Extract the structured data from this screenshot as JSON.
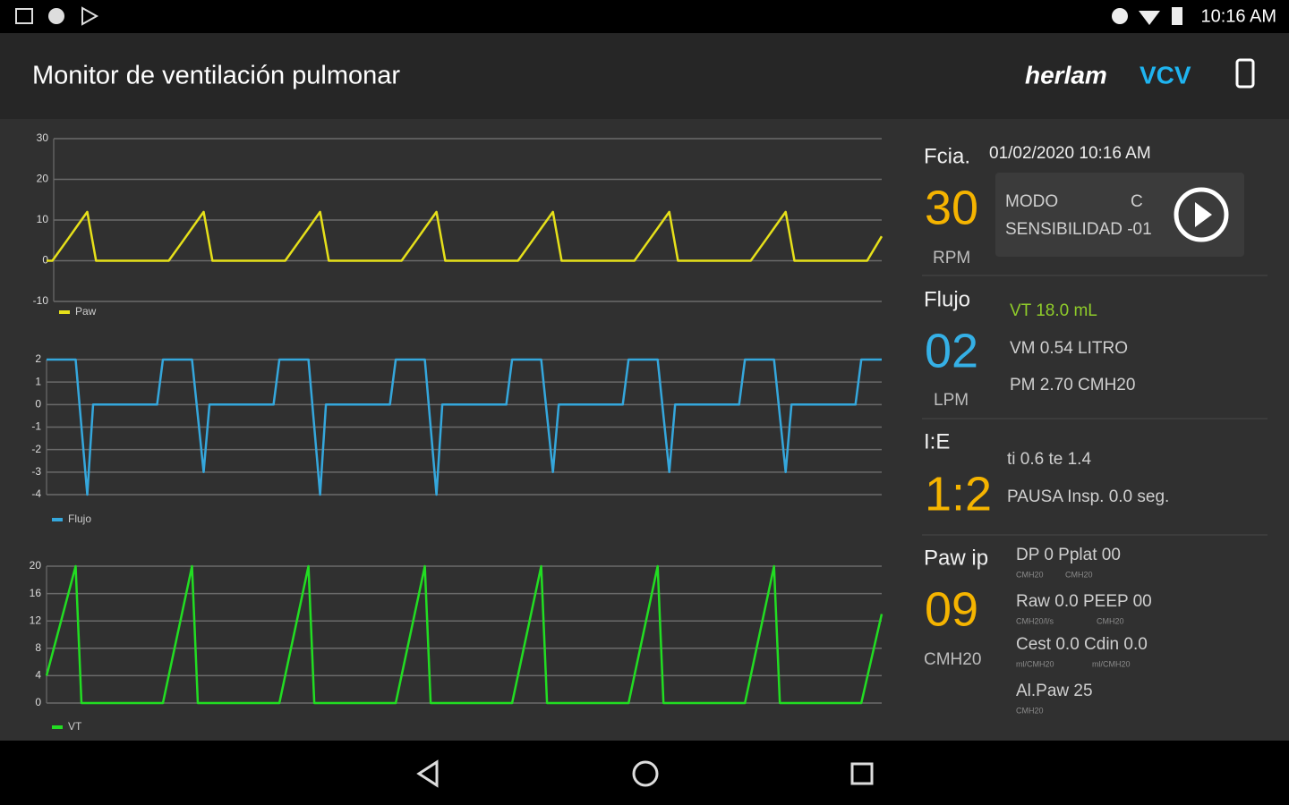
{
  "status_bar": {
    "time": "10:16 AM"
  },
  "app_bar": {
    "title": "Monitor de ventilación pulmonar",
    "brand": "herlam",
    "mode": "VCV"
  },
  "chart_data": [
    {
      "type": "line",
      "grid": true,
      "xlim": [
        0,
        14.35
      ],
      "ylim": [
        -10,
        30
      ],
      "yticks": [
        30,
        20,
        10,
        0,
        -10
      ],
      "x": [
        0,
        0.1,
        0.35,
        0.5,
        0.7,
        0.85,
        2.1,
        2.35,
        2.5,
        2.7,
        2.85,
        4.1,
        4.35,
        4.5,
        4.7,
        4.85,
        6.1,
        6.35,
        6.5,
        6.7,
        6.85,
        8.1,
        8.35,
        8.5,
        8.7,
        8.85,
        10.1,
        10.35,
        10.5,
        10.7,
        10.85,
        12.1,
        12.35,
        12.5,
        12.7,
        12.85,
        14.1,
        14.35
      ],
      "series": [
        {
          "name": "Paw",
          "color": "#e6e01a",
          "values": [
            0,
            0,
            5,
            8,
            12,
            0,
            0,
            5,
            8,
            12,
            0,
            0,
            5,
            8,
            12,
            0,
            0,
            5,
            8,
            12,
            0,
            0,
            5,
            8,
            12,
            0,
            0,
            5,
            8,
            12,
            0,
            0,
            5,
            8,
            12,
            0,
            0,
            6
          ]
        }
      ]
    },
    {
      "type": "line",
      "grid": true,
      "xlim": [
        0,
        14.35
      ],
      "ylim": [
        -4,
        2
      ],
      "yticks": [
        2,
        1,
        0,
        -1,
        -2,
        -3,
        -4
      ],
      "x": [
        0,
        0.5,
        0.7,
        0.8,
        1.9,
        2.0,
        2.5,
        2.7,
        2.8,
        3.9,
        4.0,
        4.5,
        4.7,
        4.8,
        5.9,
        6.0,
        6.5,
        6.7,
        6.8,
        7.9,
        8.0,
        8.5,
        8.7,
        8.8,
        9.9,
        10.0,
        10.5,
        10.7,
        10.8,
        11.9,
        12.0,
        12.5,
        12.7,
        12.8,
        13.9,
        14.0,
        14.35
      ],
      "series": [
        {
          "name": "Flujo",
          "color": "#35a7dc",
          "values": [
            2,
            2,
            -4,
            0,
            0,
            2,
            2,
            -3,
            0,
            0,
            2,
            2,
            -4,
            0,
            0,
            2,
            2,
            -4,
            0,
            0,
            2,
            2,
            -3,
            0,
            0,
            2,
            2,
            -3,
            0,
            0,
            2,
            2,
            -3,
            0,
            0,
            2,
            2
          ]
        }
      ]
    },
    {
      "type": "line",
      "grid": true,
      "xlim": [
        0,
        14.35
      ],
      "ylim": [
        0,
        20
      ],
      "yticks": [
        20,
        16,
        12,
        8,
        4,
        0
      ],
      "x": [
        0,
        0.5,
        0.6,
        2.0,
        2.5,
        2.6,
        4.0,
        4.5,
        4.6,
        6.0,
        6.5,
        6.6,
        8.0,
        8.5,
        8.6,
        10.0,
        10.5,
        10.6,
        12.0,
        12.5,
        12.6,
        14.0,
        14.35
      ],
      "series": [
        {
          "name": "VT",
          "color": "#22dd22",
          "values": [
            4,
            20,
            0,
            0,
            20,
            0,
            0,
            20,
            0,
            0,
            20,
            0,
            0,
            20,
            0,
            0,
            20,
            0,
            0,
            20,
            0,
            0,
            13
          ]
        }
      ]
    }
  ],
  "panel": {
    "fcia": {
      "label": "Fcia.",
      "datetime": "01/02/2020 10:16 AM",
      "value": "30",
      "unit": "RPM",
      "modo_label": "MODO",
      "modo_value": "C",
      "sensibilidad": "SENSIBILIDAD -01"
    },
    "flujo": {
      "label": "Flujo",
      "value": "02",
      "unit": "LPM",
      "rows": [
        "VT 18.0 mL",
        "VM 0.54 LITRO",
        "PM 2.70 CMH20"
      ]
    },
    "ie": {
      "label": "I:E",
      "value": "1:2",
      "rows": [
        "ti 0.6 te 1.4",
        "PAUSA Insp. 0.0 seg."
      ]
    },
    "paw": {
      "label": "Paw ip",
      "value": "09",
      "unit": "CMH20",
      "items": [
        {
          "text": "DP 0 Pplat 00",
          "units": [
            "CMH20",
            "CMH20"
          ]
        },
        {
          "text": "Raw 0.0 PEEP 00",
          "units": [
            "CMH20/l/s",
            "CMH20"
          ]
        },
        {
          "text": "Cest 0.0 Cdin 0.0",
          "units": [
            "ml/CMH20",
            "ml/CMH20"
          ]
        },
        {
          "text": "Al.Paw 25",
          "units": [
            "CMH20"
          ]
        }
      ]
    }
  }
}
